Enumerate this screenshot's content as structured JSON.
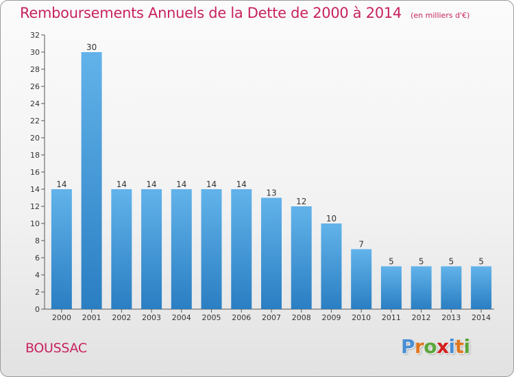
{
  "chart_data": {
    "type": "bar",
    "title": "Remboursements Annuels de la Dette de 2000 à 2014",
    "subtitle": "(en milliers d'€)",
    "categories": [
      "2000",
      "2001",
      "2002",
      "2003",
      "2004",
      "2005",
      "2006",
      "2007",
      "2008",
      "2009",
      "2010",
      "2011",
      "2012",
      "2013",
      "2014"
    ],
    "values": [
      14,
      30,
      14,
      14,
      14,
      14,
      14,
      13,
      12,
      10,
      7,
      5,
      5,
      5,
      5
    ],
    "y_ticks": [
      0,
      2,
      4,
      6,
      8,
      10,
      12,
      14,
      16,
      18,
      20,
      22,
      24,
      26,
      28,
      30,
      32
    ],
    "ylim": [
      0,
      32
    ],
    "xlabel": "",
    "ylabel": "",
    "grid": false,
    "data_labels": true
  },
  "footer": {
    "commune": "BOUSSAC",
    "logo_text": "Proxiti"
  },
  "colors": {
    "title": "#c8225f",
    "bar_light": "#62b3ea",
    "bar_dark": "#2a7ec2",
    "axis": "#555555",
    "logo_letters": [
      "#4a8fd4",
      "#e0761e",
      "#5aa63a",
      "#d42020",
      "#4a8fd4",
      "#e0761e",
      "#5aa63a"
    ]
  }
}
